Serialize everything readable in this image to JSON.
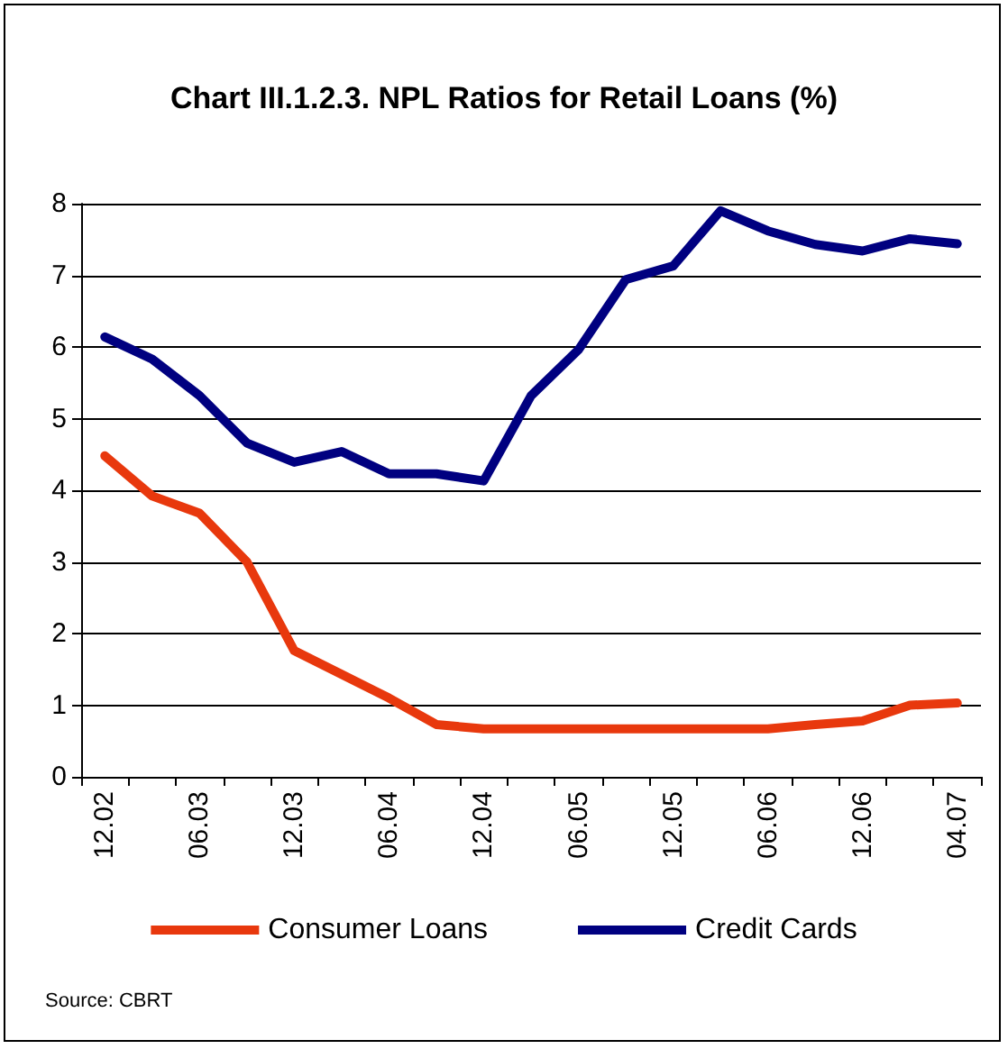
{
  "chart_data": {
    "type": "line",
    "title": "Chart III.1.2.3. NPL Ratios for Retail Loans (%)",
    "categories": [
      "12.02",
      null,
      "06.03",
      null,
      "12.03",
      null,
      "06.04",
      null,
      "12.04",
      null,
      "06.05",
      null,
      "12.05",
      null,
      "06.06",
      null,
      "12.06",
      null,
      "04.07"
    ],
    "series": [
      {
        "name": "Consumer Loans",
        "color": "#e8380d",
        "values": [
          4.48,
          3.92,
          3.68,
          3.0,
          1.76,
          1.43,
          1.1,
          0.73,
          0.67,
          0.67,
          0.67,
          0.67,
          0.67,
          0.67,
          0.67,
          0.73,
          0.78,
          1.0,
          1.03
        ]
      },
      {
        "name": "Credit Cards",
        "color": "#000080",
        "values": [
          6.14,
          5.83,
          5.32,
          4.66,
          4.39,
          4.54,
          4.23,
          4.23,
          4.13,
          5.32,
          5.96,
          6.94,
          7.13,
          7.9,
          7.62,
          7.43,
          7.34,
          7.51,
          7.44
        ]
      }
    ],
    "ylim": [
      0,
      8
    ],
    "yticks": [
      0,
      1,
      2,
      3,
      4,
      5,
      6,
      7,
      8
    ],
    "grid": "y",
    "legend": "bottom",
    "marker": "none",
    "line_style": "solid",
    "annotations": [
      "Source: CBRT"
    ]
  }
}
